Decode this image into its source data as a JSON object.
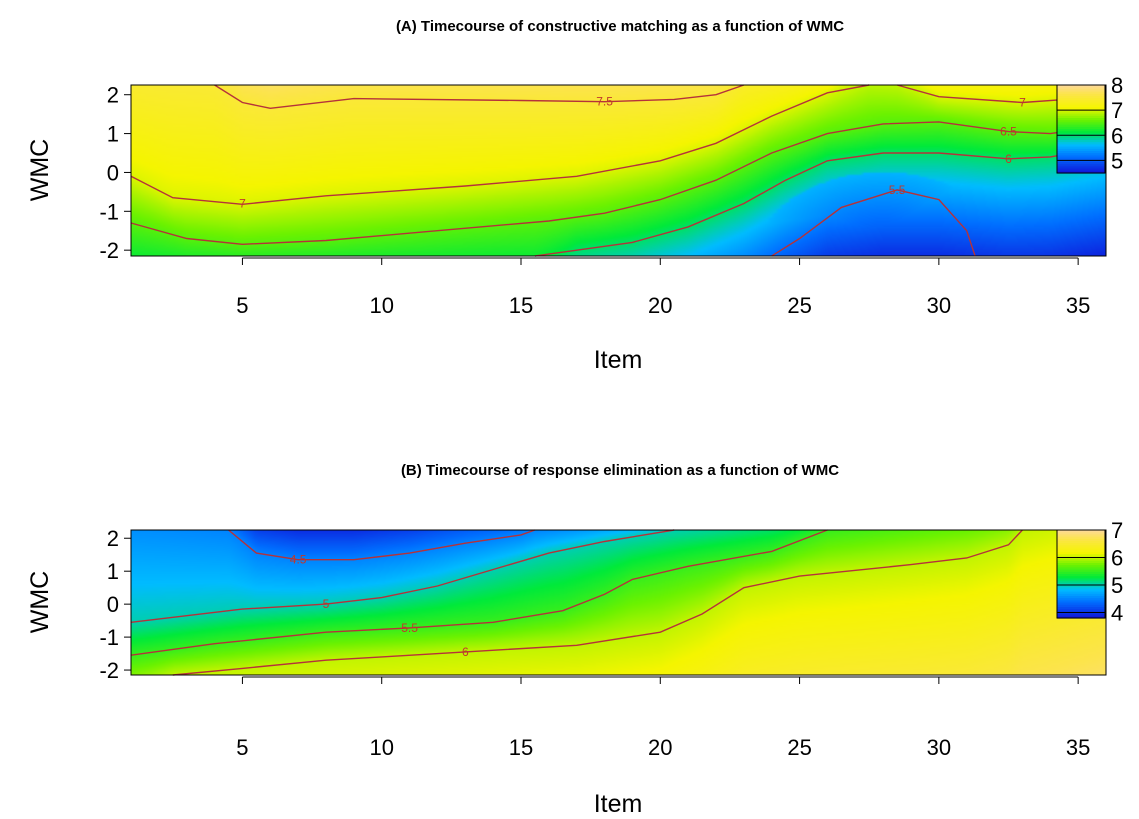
{
  "chart_data": [
    {
      "type": "heatmap",
      "title": "(A) Timecourse of constructive matching as a function of WMC",
      "xlabel": "Item",
      "ylabel": "WMC",
      "xlim": [
        1,
        36
      ],
      "ylim": [
        -2.15,
        2.25
      ],
      "x_ticks": [
        5,
        10,
        15,
        20,
        25,
        30,
        35
      ],
      "y_ticks": [
        2,
        1,
        0,
        -1,
        -2
      ],
      "legend": {
        "position": "right",
        "labels": [
          8,
          7,
          6,
          5
        ],
        "range": [
          4.5,
          8
        ]
      },
      "value_range": [
        4.5,
        8
      ],
      "grid": false,
      "contours": [
        {
          "level": "7.5",
          "label_at": [
            18,
            1.82
          ],
          "points": [
            [
              4.0,
              2.25
            ],
            [
              5.0,
              1.8
            ],
            [
              6.0,
              1.65
            ],
            [
              9.0,
              1.9
            ],
            [
              15.0,
              1.85
            ],
            [
              18.0,
              1.82
            ],
            [
              20.5,
              1.88
            ],
            [
              22.0,
              2.0
            ],
            [
              23.0,
              2.25
            ]
          ]
        },
        {
          "level": "7",
          "label_at": [
            5,
            -0.8
          ],
          "points": [
            [
              1.0,
              -0.1
            ],
            [
              2.5,
              -0.65
            ],
            [
              5.0,
              -0.82
            ],
            [
              8.0,
              -0.6
            ],
            [
              10.0,
              -0.5
            ],
            [
              13.0,
              -0.35
            ],
            [
              17.0,
              -0.1
            ],
            [
              20.0,
              0.3
            ],
            [
              22.0,
              0.75
            ],
            [
              24.0,
              1.45
            ],
            [
              26.0,
              2.05
            ],
            [
              27.5,
              2.25
            ]
          ]
        },
        {
          "level": "7",
          "label_at": [
            33,
            1.8
          ],
          "points": [
            [
              28.5,
              2.25
            ],
            [
              30.0,
              1.95
            ],
            [
              33.0,
              1.8
            ],
            [
              35.0,
              1.9
            ],
            [
              36.0,
              2.05
            ]
          ]
        },
        {
          "level": null,
          "label_at": null,
          "points": [
            [
              1.0,
              -1.3
            ],
            [
              3.0,
              -1.7
            ],
            [
              5.0,
              -1.85
            ],
            [
              8.0,
              -1.75
            ],
            [
              12.0,
              -1.5
            ],
            [
              16.0,
              -1.25
            ],
            [
              18.0,
              -1.05
            ],
            [
              20.0,
              -0.7
            ],
            [
              22.0,
              -0.2
            ],
            [
              24.0,
              0.5
            ],
            [
              26.0,
              1.0
            ],
            [
              28.0,
              1.25
            ],
            [
              30.0,
              1.3
            ],
            [
              32.5,
              1.05
            ],
            [
              34.0,
              1.0
            ],
            [
              36.0,
              1.2
            ]
          ]
        },
        {
          "level": "6.5",
          "label_at": [
            32.5,
            1.05
          ],
          "points": []
        },
        {
          "level": "6",
          "label_at": [
            32.5,
            0.35
          ],
          "points": [
            [
              15.5,
              -2.15
            ],
            [
              17.0,
              -2.0
            ],
            [
              19.0,
              -1.8
            ],
            [
              21.0,
              -1.4
            ],
            [
              23.0,
              -0.8
            ],
            [
              24.5,
              -0.2
            ],
            [
              26.0,
              0.3
            ],
            [
              28.0,
              0.5
            ],
            [
              30.0,
              0.5
            ],
            [
              32.5,
              0.35
            ],
            [
              34.0,
              0.4
            ],
            [
              36.0,
              0.65
            ]
          ]
        },
        {
          "level": "5.5",
          "label_at": [
            28.5,
            -0.45
          ],
          "points": [
            [
              24.0,
              -2.15
            ],
            [
              25.0,
              -1.7
            ],
            [
              26.5,
              -0.9
            ],
            [
              28.5,
              -0.45
            ],
            [
              30.0,
              -0.7
            ],
            [
              31.0,
              -1.5
            ],
            [
              31.3,
              -2.15
            ]
          ]
        }
      ]
    },
    {
      "type": "heatmap",
      "title": "(B) Timecourse of response elimination as a function of WMC",
      "xlabel": "Item",
      "ylabel": "WMC",
      "xlim": [
        1,
        36
      ],
      "ylim": [
        -2.15,
        2.25
      ],
      "x_ticks": [
        5,
        10,
        15,
        20,
        25,
        30,
        35
      ],
      "y_ticks": [
        2,
        1,
        0,
        -1,
        -2
      ],
      "legend": {
        "position": "right",
        "labels": [
          7,
          6,
          5,
          4
        ],
        "range": [
          3.8,
          7
        ]
      },
      "value_range": [
        3.8,
        7
      ],
      "grid": false,
      "contours": [
        {
          "level": "4.5",
          "label_at": [
            7,
            1.35
          ],
          "points": [
            [
              4.5,
              2.25
            ],
            [
              5.5,
              1.55
            ],
            [
              7.0,
              1.35
            ],
            [
              9.0,
              1.35
            ],
            [
              11.0,
              1.55
            ],
            [
              13.0,
              1.85
            ],
            [
              15.0,
              2.1
            ],
            [
              15.5,
              2.25
            ]
          ]
        },
        {
          "level": "5",
          "label_at": [
            8,
            0.0
          ],
          "points": [
            [
              1.0,
              -0.55
            ],
            [
              3.0,
              -0.35
            ],
            [
              5.0,
              -0.15
            ],
            [
              8.0,
              0.0
            ],
            [
              10.0,
              0.2
            ],
            [
              12.0,
              0.55
            ],
            [
              14.0,
              1.05
            ],
            [
              16.0,
              1.55
            ],
            [
              18.0,
              1.9
            ],
            [
              20.5,
              2.25
            ]
          ]
        },
        {
          "level": "5.5",
          "label_at": [
            11,
            -0.72
          ],
          "points": [
            [
              1.0,
              -1.55
            ],
            [
              4.0,
              -1.2
            ],
            [
              8.0,
              -0.85
            ],
            [
              11.0,
              -0.72
            ],
            [
              14.0,
              -0.55
            ],
            [
              16.5,
              -0.2
            ],
            [
              18.0,
              0.3
            ],
            [
              19.0,
              0.75
            ],
            [
              21.0,
              1.15
            ],
            [
              24.0,
              1.6
            ],
            [
              26.0,
              2.25
            ]
          ]
        },
        {
          "level": "6",
          "label_at": [
            13,
            -1.45
          ],
          "points": [
            [
              2.5,
              -2.15
            ],
            [
              5.0,
              -1.95
            ],
            [
              8.0,
              -1.7
            ],
            [
              10.0,
              -1.6
            ],
            [
              13.0,
              -1.45
            ],
            [
              17.0,
              -1.25
            ],
            [
              20.0,
              -0.85
            ],
            [
              21.5,
              -0.3
            ],
            [
              23.0,
              0.5
            ],
            [
              25.0,
              0.85
            ],
            [
              29.0,
              1.2
            ],
            [
              31.0,
              1.4
            ],
            [
              32.5,
              1.8
            ],
            [
              33.0,
              2.25
            ]
          ]
        }
      ]
    }
  ]
}
